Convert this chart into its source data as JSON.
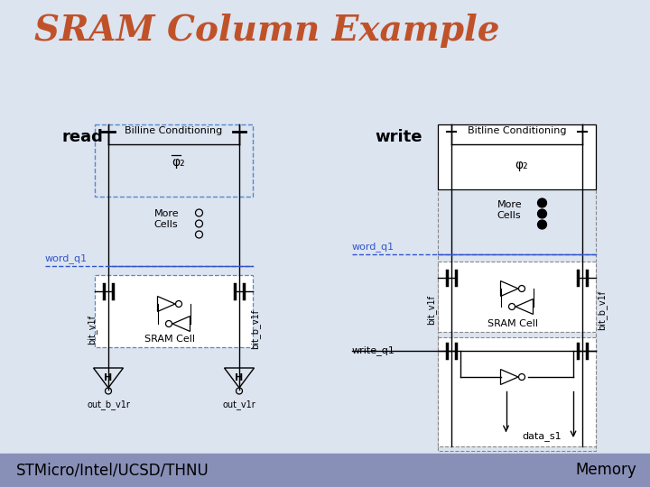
{
  "title": "SRAM Column Example",
  "title_color": "#c0522a",
  "read_label": "read",
  "write_label": "write",
  "footer_text": "STMicro/Intel/UCSD/THNU",
  "footer_right": "Memory",
  "footer_bg_top": "#9aa0c0",
  "footer_bg_bot": "#7880a8",
  "bg_color": "#dce4f0",
  "blue_label_color": "#3355cc",
  "black_color": "#000000",
  "phi2_label": "φ₂",
  "more_cells_label": "More\nCells",
  "sram_cell_label": "SRAM Cell",
  "word_q1_label": "word_q1",
  "bit_v1f_label": "bit_v1f",
  "bit_b_v1f_label": "bit_b_v1f",
  "out_b_v1r_label": "out_b_v1r",
  "out_v1r_label": "out_v1r",
  "write_q1_label": "write_q1",
  "data_s1_label": "data_s1",
  "h_label": "H",
  "billine_cond_label": "Billine Conditioning"
}
